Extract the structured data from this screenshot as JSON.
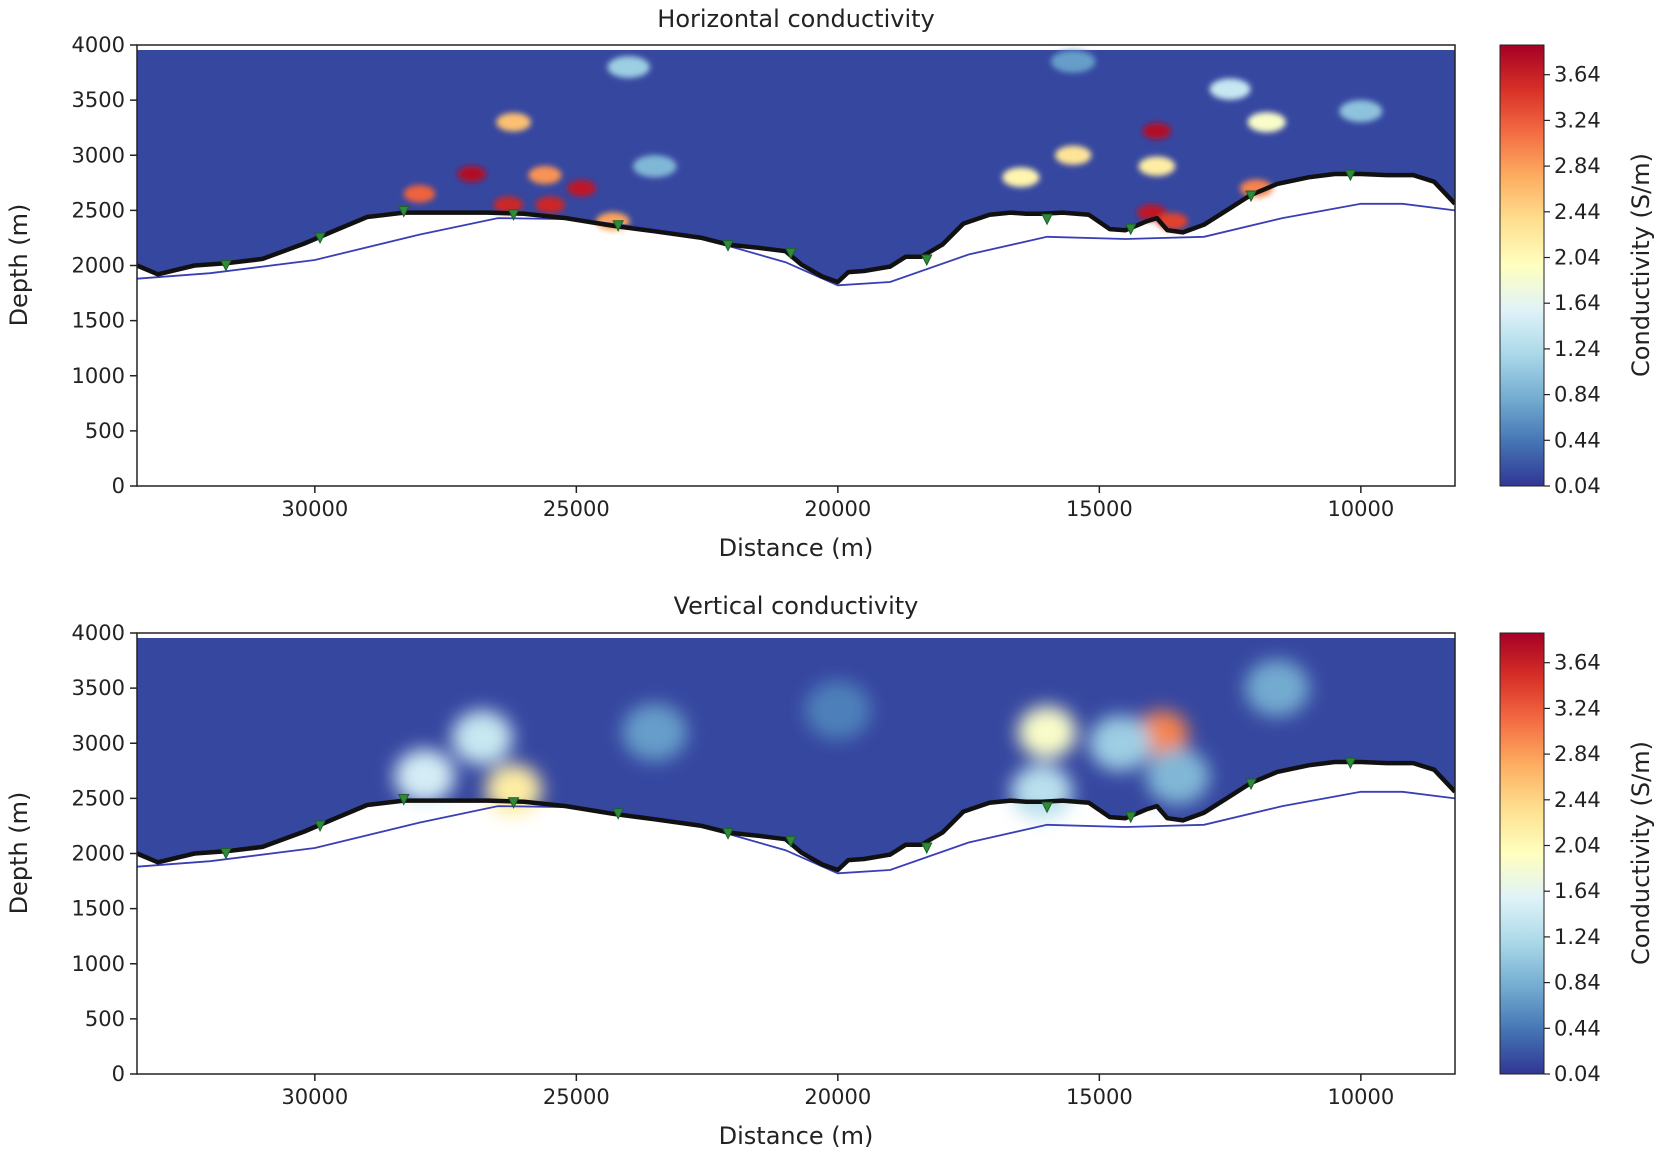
{
  "chart_data": [
    {
      "type": "heatmap",
      "title": "Horizontal conductivity",
      "xlabel": "Distance (m)",
      "ylabel": "Depth (m)",
      "xlim": [
        33400,
        8200
      ],
      "ylim": [
        4000,
        0
      ],
      "xticks": [
        30000,
        25000,
        20000,
        15000,
        10000
      ],
      "yticks": [
        0,
        500,
        1000,
        1500,
        2000,
        2500,
        3000,
        3500,
        4000
      ],
      "colorbar": {
        "label": "Conductivity (S/m)",
        "min": 0.04,
        "max": 3.9,
        "ticks": [
          "0.04",
          "0.44",
          "0.84",
          "1.24",
          "1.64",
          "2.04",
          "2.44",
          "2.84",
          "3.24",
          "3.64"
        ]
      },
      "series": [
        {
          "name": "seafloor (black)",
          "x": [
            33400,
            33000,
            32300,
            31700,
            31000,
            30200,
            29600,
            29000,
            28300,
            27500,
            26700,
            26000,
            25200,
            24300,
            23500,
            22600,
            22100,
            21500,
            21000,
            20700,
            20300,
            20000,
            19800,
            19500,
            19000,
            18700,
            18400,
            18000,
            17600,
            17100,
            16700,
            16400,
            16100,
            15700,
            15200,
            14800,
            14500,
            14100,
            13900,
            13700,
            13400,
            13000,
            12500,
            12100,
            11600,
            11000,
            10500,
            10000,
            9500,
            9000,
            8600,
            8400,
            8200
          ],
          "y": [
            2000,
            1920,
            2000,
            2020,
            2060,
            2200,
            2320,
            2440,
            2480,
            2480,
            2480,
            2470,
            2430,
            2360,
            2310,
            2250,
            2190,
            2160,
            2130,
            2010,
            1900,
            1850,
            1940,
            1950,
            1990,
            2080,
            2080,
            2190,
            2380,
            2460,
            2480,
            2470,
            2470,
            2480,
            2460,
            2330,
            2320,
            2400,
            2430,
            2320,
            2300,
            2370,
            2520,
            2640,
            2740,
            2800,
            2830,
            2830,
            2820,
            2820,
            2760,
            2660,
            2560
          ]
        },
        {
          "name": "air-water interface (blue)",
          "x": [
            33400,
            32000,
            30000,
            28000,
            26500,
            25000,
            23000,
            21000,
            20000,
            19000,
            17500,
            16000,
            14500,
            13000,
            11500,
            10000,
            9200,
            8200
          ],
          "y": [
            1880,
            1930,
            2050,
            2280,
            2430,
            2420,
            2300,
            2030,
            1820,
            1850,
            2100,
            2260,
            2240,
            2260,
            2430,
            2560,
            2560,
            2500
          ]
        },
        {
          "name": "receivers (green)",
          "x": [
            31700,
            29900,
            28300,
            26200,
            24200,
            22100,
            20900,
            18300,
            16000,
            14400,
            12100,
            10200
          ],
          "y": [
            2000,
            2250,
            2490,
            2460,
            2360,
            2180,
            2110,
            2050,
            2420,
            2330,
            2630,
            2820
          ]
        }
      ],
      "anomalies": [
        {
          "x": 27000,
          "depth": 2830,
          "value": 3.8
        },
        {
          "x": 26300,
          "depth": 2550,
          "value": 3.6
        },
        {
          "x": 25500,
          "depth": 2550,
          "value": 3.6
        },
        {
          "x": 24900,
          "depth": 2700,
          "value": 3.7
        },
        {
          "x": 25600,
          "depth": 2820,
          "value": 2.9
        },
        {
          "x": 28000,
          "depth": 2650,
          "value": 3.2
        },
        {
          "x": 24300,
          "depth": 2400,
          "value": 2.8
        },
        {
          "x": 26200,
          "depth": 3300,
          "value": 2.6
        },
        {
          "x": 13900,
          "depth": 3220,
          "value": 3.8
        },
        {
          "x": 14000,
          "depth": 2480,
          "value": 3.7
        },
        {
          "x": 13600,
          "depth": 2400,
          "value": 3.4
        },
        {
          "x": 13900,
          "depth": 2900,
          "value": 2.2
        },
        {
          "x": 12000,
          "depth": 2700,
          "value": 3.0
        },
        {
          "x": 15500,
          "depth": 3000,
          "value": 2.3
        },
        {
          "x": 16500,
          "depth": 2800,
          "value": 2.1
        },
        {
          "x": 11800,
          "depth": 3300,
          "value": 1.9
        },
        {
          "x": 10000,
          "depth": 3400,
          "value": 1.0
        },
        {
          "x": 24000,
          "depth": 3800,
          "value": 1.1
        },
        {
          "x": 12500,
          "depth": 3600,
          "value": 1.4
        },
        {
          "x": 23500,
          "depth": 2900,
          "value": 0.9
        },
        {
          "x": 15500,
          "depth": 3850,
          "value": 0.7
        }
      ]
    },
    {
      "type": "heatmap",
      "title": "Vertical conductivity",
      "xlabel": "Distance (m)",
      "ylabel": "Depth (m)",
      "xlim": [
        33400,
        8200
      ],
      "ylim": [
        4000,
        0
      ],
      "xticks": [
        30000,
        25000,
        20000,
        15000,
        10000
      ],
      "yticks": [
        0,
        500,
        1000,
        1500,
        2000,
        2500,
        3000,
        3500,
        4000
      ],
      "colorbar": {
        "label": "Conductivity (S/m)",
        "min": 0.04,
        "max": 3.9,
        "ticks": [
          "0.04",
          "0.44",
          "0.84",
          "1.24",
          "1.64",
          "2.04",
          "2.44",
          "2.84",
          "3.24",
          "3.64"
        ]
      },
      "series": [
        {
          "name": "seafloor (black)",
          "x": [
            33400,
            33000,
            32300,
            31700,
            31000,
            30200,
            29600,
            29000,
            28300,
            27500,
            26700,
            26000,
            25200,
            24300,
            23500,
            22600,
            22100,
            21500,
            21000,
            20700,
            20300,
            20000,
            19800,
            19500,
            19000,
            18700,
            18400,
            18000,
            17600,
            17100,
            16700,
            16400,
            16100,
            15700,
            15200,
            14800,
            14500,
            14100,
            13900,
            13700,
            13400,
            13000,
            12500,
            12100,
            11600,
            11000,
            10500,
            10000,
            9500,
            9000,
            8600,
            8400,
            8200
          ],
          "y": [
            2000,
            1920,
            2000,
            2020,
            2060,
            2200,
            2320,
            2440,
            2480,
            2480,
            2480,
            2470,
            2430,
            2360,
            2310,
            2250,
            2190,
            2160,
            2130,
            2010,
            1900,
            1850,
            1940,
            1950,
            1990,
            2080,
            2080,
            2190,
            2380,
            2460,
            2480,
            2470,
            2470,
            2480,
            2460,
            2330,
            2320,
            2400,
            2430,
            2320,
            2300,
            2370,
            2520,
            2640,
            2740,
            2800,
            2830,
            2830,
            2820,
            2820,
            2760,
            2660,
            2560
          ]
        },
        {
          "name": "air-water interface (blue)",
          "x": [
            33400,
            32000,
            30000,
            28000,
            26500,
            25000,
            23000,
            21000,
            20000,
            19000,
            17500,
            16000,
            14500,
            13000,
            11500,
            10000,
            9200,
            8200
          ],
          "y": [
            1880,
            1930,
            2050,
            2280,
            2430,
            2420,
            2300,
            2030,
            1820,
            1850,
            2100,
            2260,
            2240,
            2260,
            2430,
            2560,
            2560,
            2500
          ]
        },
        {
          "name": "receivers (green)",
          "x": [
            31700,
            29900,
            28300,
            26200,
            24200,
            22100,
            20900,
            18300,
            16000,
            14400,
            12100,
            10200
          ],
          "y": [
            2000,
            2250,
            2490,
            2460,
            2360,
            2180,
            2110,
            2050,
            2420,
            2330,
            2630,
            2820
          ]
        }
      ],
      "anomalies": [
        {
          "x": 13800,
          "depth": 3080,
          "value": 3.0
        },
        {
          "x": 16000,
          "depth": 3100,
          "value": 1.9
        },
        {
          "x": 26800,
          "depth": 3050,
          "value": 1.4
        },
        {
          "x": 27900,
          "depth": 2700,
          "value": 1.5
        },
        {
          "x": 26200,
          "depth": 2580,
          "value": 2.2
        },
        {
          "x": 14600,
          "depth": 3000,
          "value": 1.1
        },
        {
          "x": 16100,
          "depth": 2560,
          "value": 1.3
        },
        {
          "x": 11600,
          "depth": 3500,
          "value": 0.8
        },
        {
          "x": 23500,
          "depth": 3100,
          "value": 0.7
        },
        {
          "x": 13500,
          "depth": 2700,
          "value": 0.9
        },
        {
          "x": 20000,
          "depth": 3300,
          "value": 0.5
        }
      ]
    }
  ]
}
